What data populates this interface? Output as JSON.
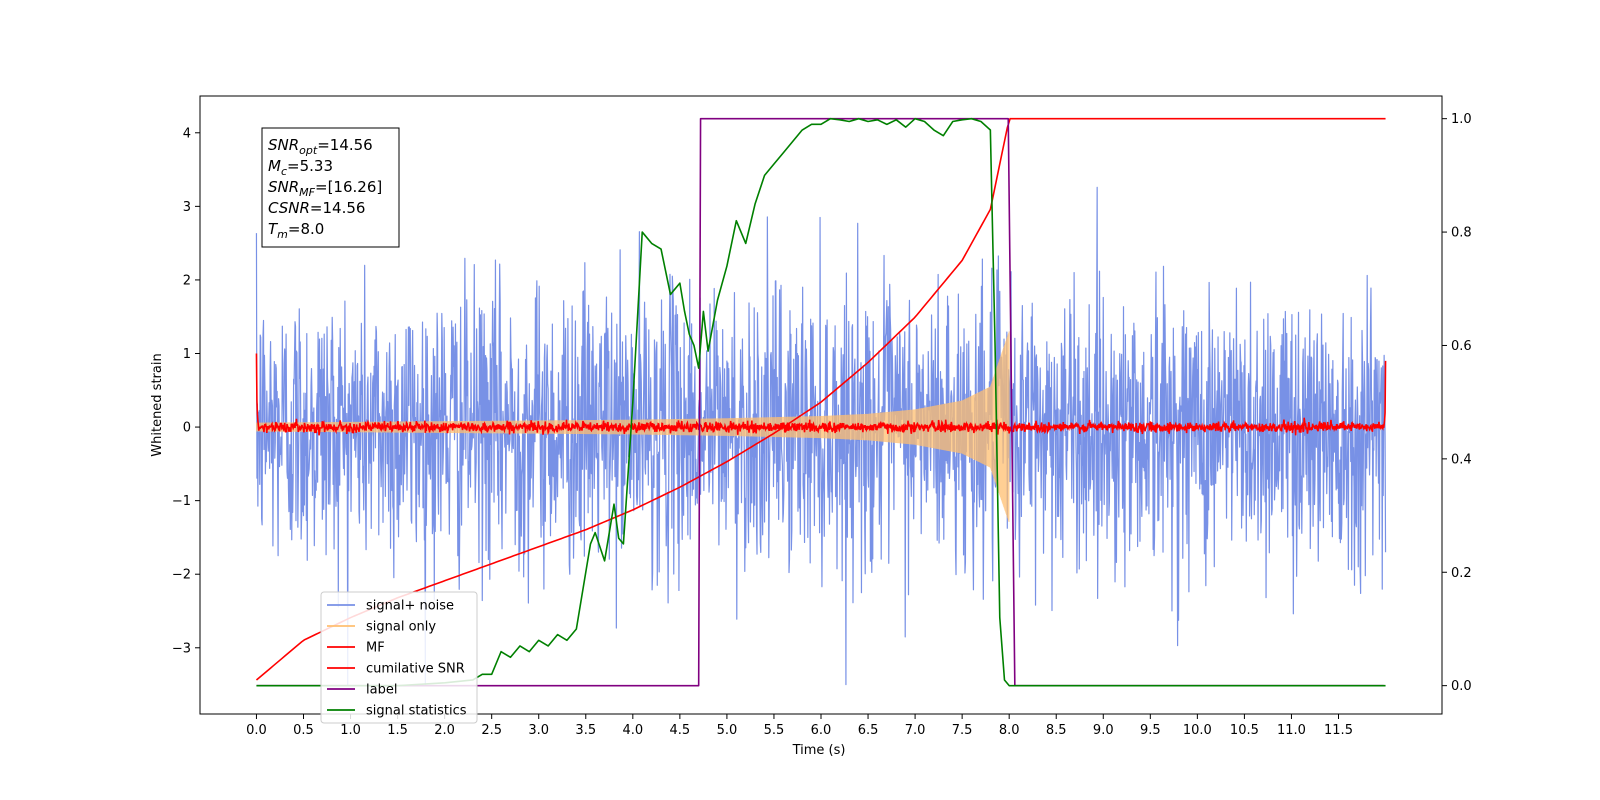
{
  "chart_data": {
    "type": "line",
    "xlabel": "Time (s)",
    "ylabel": "Whitened strain",
    "xlim": [
      -0.6,
      12.6
    ],
    "ylim_left": [
      -3.9,
      4.5
    ],
    "ylim_right": [
      -0.05,
      1.04
    ],
    "x_ticks": [
      0.0,
      0.5,
      1.0,
      1.5,
      2.0,
      2.5,
      3.0,
      3.5,
      4.0,
      4.5,
      5.0,
      5.5,
      6.0,
      6.5,
      7.0,
      7.5,
      8.0,
      8.5,
      9.0,
      9.5,
      10.0,
      10.5,
      11.0,
      11.5
    ],
    "x_tick_labels": [
      "0.0",
      "0.5",
      "1.0",
      "1.5",
      "2.0",
      "2.5",
      "3.0",
      "3.5",
      "4.0",
      "4.5",
      "5.0",
      "5.5",
      "6.0",
      "6.5",
      "7.0",
      "7.5",
      "8.0",
      "8.5",
      "9.0",
      "9.5",
      "10.0",
      "10.5",
      "11.0",
      "11.5"
    ],
    "y_left_ticks": [
      -3,
      -2,
      -1,
      0,
      1,
      2,
      3,
      4
    ],
    "y_left_tick_labels": [
      "−3",
      "−2",
      "−1",
      "0",
      "1",
      "2",
      "3",
      "4"
    ],
    "y_right_ticks": [
      0.0,
      0.2,
      0.4,
      0.6,
      0.8,
      1.0
    ],
    "y_right_tick_labels": [
      "0.0",
      "0.2",
      "0.4",
      "0.6",
      "0.8",
      "1.0"
    ],
    "legend_position": "bottom-left",
    "annotation": [
      {
        "base": "SNR",
        "sub": "opt",
        "rest": "=14.56"
      },
      {
        "base": "M",
        "sub": "c",
        "rest": "=5.33"
      },
      {
        "base": "SNR",
        "sub": "MF",
        "rest": "=[16.26]"
      },
      {
        "base": "CSNR",
        "sub": "",
        "rest": "=14.56"
      },
      {
        "base": "T",
        "sub": "m",
        "rest": "=8.0"
      }
    ],
    "series": [
      {
        "name": "signal+ noise",
        "axis": "left",
        "color": "#7891e6",
        "kind": "noise",
        "x_range": [
          0.0,
          12.0
        ],
        "std": 1.0,
        "approx_range": [
          -3.5,
          4.1
        ]
      },
      {
        "name": "signal only",
        "axis": "left",
        "color": "#ffbf70",
        "kind": "chirp-envelope",
        "x_range": [
          0.0,
          8.0
        ],
        "envelope": {
          "x": [
            0.0,
            2.0,
            4.0,
            5.0,
            6.0,
            6.5,
            7.0,
            7.5,
            7.8,
            8.0
          ],
          "y": [
            0.06,
            0.08,
            0.1,
            0.12,
            0.15,
            0.18,
            0.24,
            0.36,
            0.55,
            1.3
          ]
        }
      },
      {
        "name": "MF",
        "axis": "left",
        "color": "#ff0000",
        "kind": "noise",
        "x_range": [
          0.0,
          12.0
        ],
        "std": 0.035,
        "start_value": 1.0,
        "end_value": 0.9
      },
      {
        "name": "cumilative SNR",
        "axis": "right",
        "color": "#ff0000",
        "x": [
          0.0,
          0.5,
          1.0,
          1.5,
          2.0,
          2.5,
          3.0,
          3.5,
          4.0,
          4.5,
          5.0,
          5.5,
          6.0,
          6.5,
          7.0,
          7.5,
          7.8,
          8.0,
          12.0
        ],
        "y": [
          0.01,
          0.08,
          0.12,
          0.155,
          0.185,
          0.215,
          0.245,
          0.275,
          0.31,
          0.35,
          0.395,
          0.445,
          0.5,
          0.57,
          0.65,
          0.75,
          0.84,
          1.0,
          1.0
        ]
      },
      {
        "name": "label",
        "axis": "right",
        "color": "#800080",
        "x": [
          0.0,
          4.7,
          4.72,
          7.99,
          8.06,
          11.98
        ],
        "y": [
          0.0,
          0.0,
          1.0,
          1.0,
          0.0,
          0.0
        ]
      },
      {
        "name": "signal statistics",
        "axis": "right",
        "color": "#008000",
        "x": [
          0.0,
          1.5,
          2.0,
          2.3,
          2.4,
          2.5,
          2.6,
          2.7,
          2.8,
          2.9,
          3.0,
          3.1,
          3.2,
          3.3,
          3.4,
          3.5,
          3.55,
          3.6,
          3.7,
          3.8,
          3.85,
          3.9,
          4.0,
          4.1,
          4.2,
          4.3,
          4.4,
          4.5,
          4.55,
          4.6,
          4.65,
          4.7,
          4.75,
          4.8,
          4.9,
          5.0,
          5.1,
          5.2,
          5.3,
          5.4,
          5.5,
          5.6,
          5.7,
          5.8,
          5.9,
          6.0,
          6.1,
          6.2,
          6.3,
          6.4,
          6.5,
          6.6,
          6.7,
          6.8,
          6.9,
          7.0,
          7.1,
          7.2,
          7.3,
          7.4,
          7.5,
          7.6,
          7.7,
          7.8,
          7.85,
          7.9,
          7.95,
          8.0,
          8.1,
          12.0
        ],
        "y": [
          0.0,
          0.0,
          0.005,
          0.01,
          0.02,
          0.02,
          0.06,
          0.05,
          0.07,
          0.06,
          0.08,
          0.07,
          0.09,
          0.08,
          0.1,
          0.2,
          0.25,
          0.27,
          0.22,
          0.32,
          0.26,
          0.25,
          0.5,
          0.8,
          0.78,
          0.77,
          0.69,
          0.71,
          0.66,
          0.62,
          0.6,
          0.56,
          0.66,
          0.59,
          0.68,
          0.74,
          0.82,
          0.78,
          0.85,
          0.9,
          0.92,
          0.94,
          0.96,
          0.98,
          0.99,
          0.99,
          1.0,
          0.998,
          0.995,
          1.0,
          0.995,
          0.998,
          0.99,
          0.998,
          0.985,
          1.0,
          0.995,
          0.98,
          0.97,
          0.995,
          0.998,
          1.0,
          0.995,
          0.98,
          0.6,
          0.12,
          0.01,
          0.0,
          0.0,
          0.0
        ]
      }
    ]
  }
}
